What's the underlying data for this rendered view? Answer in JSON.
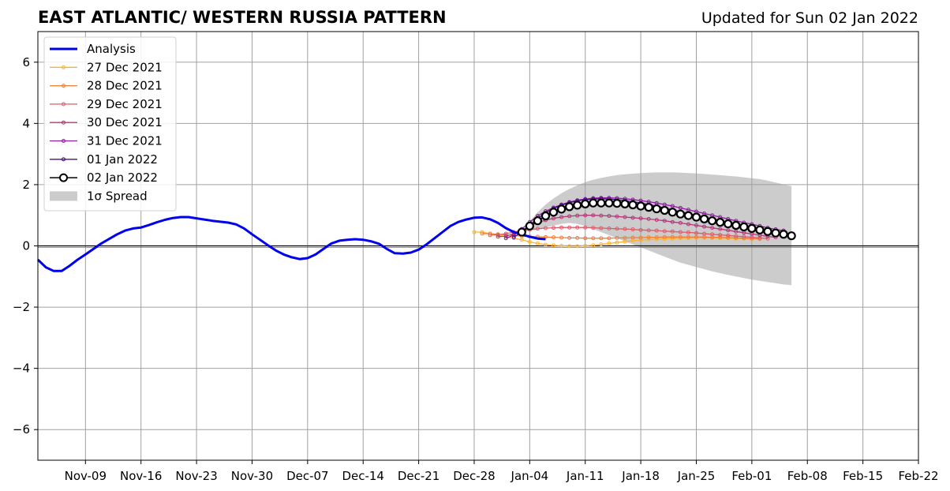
{
  "chart_data": {
    "type": "line",
    "title": "EAST ATLANTIC/ WESTERN RUSSIA PATTERN",
    "subtitle": "Updated for Sun 02 Jan 2022",
    "xlabel": "",
    "ylabel": "",
    "xlim": [
      "2021-11-03",
      "2022-02-22"
    ],
    "ylim": [
      -7,
      7
    ],
    "grid": true,
    "legend_position": "top-left",
    "x_ticks": [
      "2021-11-09",
      "2021-11-16",
      "2021-11-23",
      "2021-11-30",
      "2021-12-07",
      "2021-12-14",
      "2021-12-21",
      "2021-12-28",
      "2022-01-04",
      "2022-01-11",
      "2022-01-18",
      "2022-01-25",
      "2022-02-01",
      "2022-02-08",
      "2022-02-15",
      "2022-02-22"
    ],
    "x_tick_labels": [
      "Nov-09",
      "Nov-16",
      "Nov-23",
      "Nov-30",
      "Dec-07",
      "Dec-14",
      "Dec-21",
      "Dec-28",
      "Jan-04",
      "Jan-11",
      "Jan-18",
      "Jan-25",
      "Feb-01",
      "Feb-08",
      "Feb-15",
      "Feb-22"
    ],
    "y_ticks": [
      -6,
      -4,
      -2,
      0,
      2,
      4,
      6
    ],
    "y_tick_labels": [
      "−6",
      "−4",
      "−2",
      "0",
      "2",
      "4",
      "6"
    ],
    "analysis": {
      "name": "Analysis",
      "color": "#0000ee",
      "start": "2021-11-03",
      "values": [
        -0.45,
        -0.7,
        -0.82,
        -0.82,
        -0.65,
        -0.45,
        -0.28,
        -0.1,
        0.08,
        0.23,
        0.38,
        0.5,
        0.57,
        0.6,
        0.68,
        0.77,
        0.85,
        0.91,
        0.94,
        0.94,
        0.9,
        0.86,
        0.82,
        0.79,
        0.76,
        0.7,
        0.57,
        0.38,
        0.2,
        0.02,
        -0.15,
        -0.28,
        -0.37,
        -0.43,
        -0.4,
        -0.28,
        -0.1,
        0.08,
        0.17,
        0.2,
        0.22,
        0.2,
        0.15,
        0.07,
        -0.1,
        -0.24,
        -0.25,
        -0.22,
        -0.12,
        0.05,
        0.25,
        0.45,
        0.65,
        0.78,
        0.86,
        0.92,
        0.93,
        0.87,
        0.75,
        0.58,
        0.45,
        0.37,
        0.3,
        0.24,
        0.22
      ]
    },
    "forecasts": [
      {
        "name": "27 Dec 2021",
        "color": "#fbb32e",
        "start": "2021-12-28",
        "values": [
          0.45,
          0.45,
          0.4,
          0.35,
          0.3,
          0.25,
          0.2,
          0.13,
          0.08,
          0.04,
          0.02,
          0.0,
          -0.01,
          -0.01,
          0.0,
          0.02,
          0.05,
          0.08,
          0.11,
          0.14,
          0.17,
          0.19,
          0.21,
          0.22,
          0.23,
          0.24,
          0.25,
          0.25,
          0.26,
          0.26,
          0.26,
          0.25,
          0.25,
          0.24,
          0.24,
          0.23
        ]
      },
      {
        "name": "28 Dec 2021",
        "color": "#f07f3a",
        "start": "2021-12-29",
        "values": [
          0.4,
          0.4,
          0.38,
          0.36,
          0.34,
          0.32,
          0.31,
          0.3,
          0.29,
          0.28,
          0.27,
          0.26,
          0.26,
          0.25,
          0.25,
          0.25,
          0.25,
          0.26,
          0.26,
          0.27,
          0.27,
          0.28,
          0.28,
          0.29,
          0.29,
          0.29,
          0.29,
          0.29,
          0.29,
          0.28,
          0.28,
          0.27,
          0.26,
          0.25,
          0.24,
          0.23
        ]
      },
      {
        "name": "29 Dec 2021",
        "color": "#dc5b6a",
        "start": "2021-12-30",
        "values": [
          0.35,
          0.36,
          0.4,
          0.45,
          0.5,
          0.53,
          0.56,
          0.58,
          0.59,
          0.6,
          0.6,
          0.6,
          0.6,
          0.59,
          0.58,
          0.57,
          0.56,
          0.55,
          0.54,
          0.52,
          0.51,
          0.5,
          0.48,
          0.47,
          0.45,
          0.44,
          0.42,
          0.4,
          0.38,
          0.36,
          0.34,
          0.32,
          0.3,
          0.28,
          0.26,
          0.24
        ]
      },
      {
        "name": "30 Dec 2021",
        "color": "#b5367a",
        "start": "2021-12-31",
        "values": [
          0.3,
          0.32,
          0.4,
          0.52,
          0.65,
          0.76,
          0.84,
          0.9,
          0.94,
          0.97,
          0.99,
          1.0,
          1.0,
          0.99,
          0.98,
          0.96,
          0.94,
          0.92,
          0.9,
          0.88,
          0.85,
          0.82,
          0.78,
          0.75,
          0.71,
          0.67,
          0.63,
          0.59,
          0.55,
          0.51,
          0.47,
          0.43,
          0.39,
          0.35,
          0.31,
          0.28
        ]
      },
      {
        "name": "31 Dec 2021",
        "color": "#8b1c9c",
        "start": "2022-01-01",
        "values": [
          0.25,
          0.35,
          0.55,
          0.78,
          0.98,
          1.13,
          1.25,
          1.35,
          1.43,
          1.49,
          1.53,
          1.56,
          1.57,
          1.57,
          1.56,
          1.54,
          1.51,
          1.48,
          1.44,
          1.4,
          1.35,
          1.3,
          1.24,
          1.18,
          1.12,
          1.06,
          1.0,
          0.94,
          0.88,
          0.82,
          0.76,
          0.71,
          0.65,
          0.59,
          0.54,
          0.5
        ]
      },
      {
        "name": "01 Jan 2022",
        "color": "#4b0c86",
        "start": "2022-01-02",
        "values": [
          0.28,
          0.45,
          0.68,
          0.9,
          1.08,
          1.22,
          1.33,
          1.41,
          1.47,
          1.51,
          1.53,
          1.54,
          1.53,
          1.51,
          1.48,
          1.44,
          1.4,
          1.35,
          1.3,
          1.24,
          1.18,
          1.12,
          1.06,
          1.0,
          0.94,
          0.88,
          0.82,
          0.76,
          0.7,
          0.65,
          0.6,
          0.55,
          0.5,
          0.45,
          0.41,
          0.37
        ]
      }
    ],
    "latest": {
      "name": "02 Jan 2022",
      "color": "#000000",
      "start": "2022-01-03",
      "values": [
        0.45,
        0.65,
        0.82,
        0.98,
        1.1,
        1.2,
        1.28,
        1.33,
        1.37,
        1.4,
        1.4,
        1.4,
        1.39,
        1.37,
        1.34,
        1.3,
        1.26,
        1.21,
        1.16,
        1.1,
        1.04,
        0.99,
        0.94,
        0.88,
        0.82,
        0.77,
        0.72,
        0.67,
        0.62,
        0.57,
        0.52,
        0.47,
        0.42,
        0.38,
        0.33
      ]
    },
    "spread": {
      "name": "1σ Spread",
      "color": "#cccccc",
      "start": "2022-01-03",
      "upper": [
        0.45,
        0.8,
        1.1,
        1.35,
        1.55,
        1.72,
        1.86,
        1.98,
        2.08,
        2.16,
        2.22,
        2.27,
        2.31,
        2.34,
        2.36,
        2.38,
        2.39,
        2.4,
        2.4,
        2.4,
        2.39,
        2.38,
        2.37,
        2.35,
        2.33,
        2.31,
        2.29,
        2.27,
        2.24,
        2.21,
        2.18,
        2.13,
        2.07,
        2.01,
        1.95
      ],
      "lower": [
        0.45,
        0.5,
        0.54,
        0.6,
        0.66,
        0.72,
        0.75,
        0.72,
        0.65,
        0.55,
        0.45,
        0.35,
        0.25,
        0.15,
        0.05,
        -0.05,
        -0.15,
        -0.25,
        -0.35,
        -0.45,
        -0.55,
        -0.62,
        -0.69,
        -0.76,
        -0.83,
        -0.89,
        -0.95,
        -1.0,
        -1.05,
        -1.1,
        -1.14,
        -1.18,
        -1.22,
        -1.26,
        -1.28
      ]
    }
  }
}
